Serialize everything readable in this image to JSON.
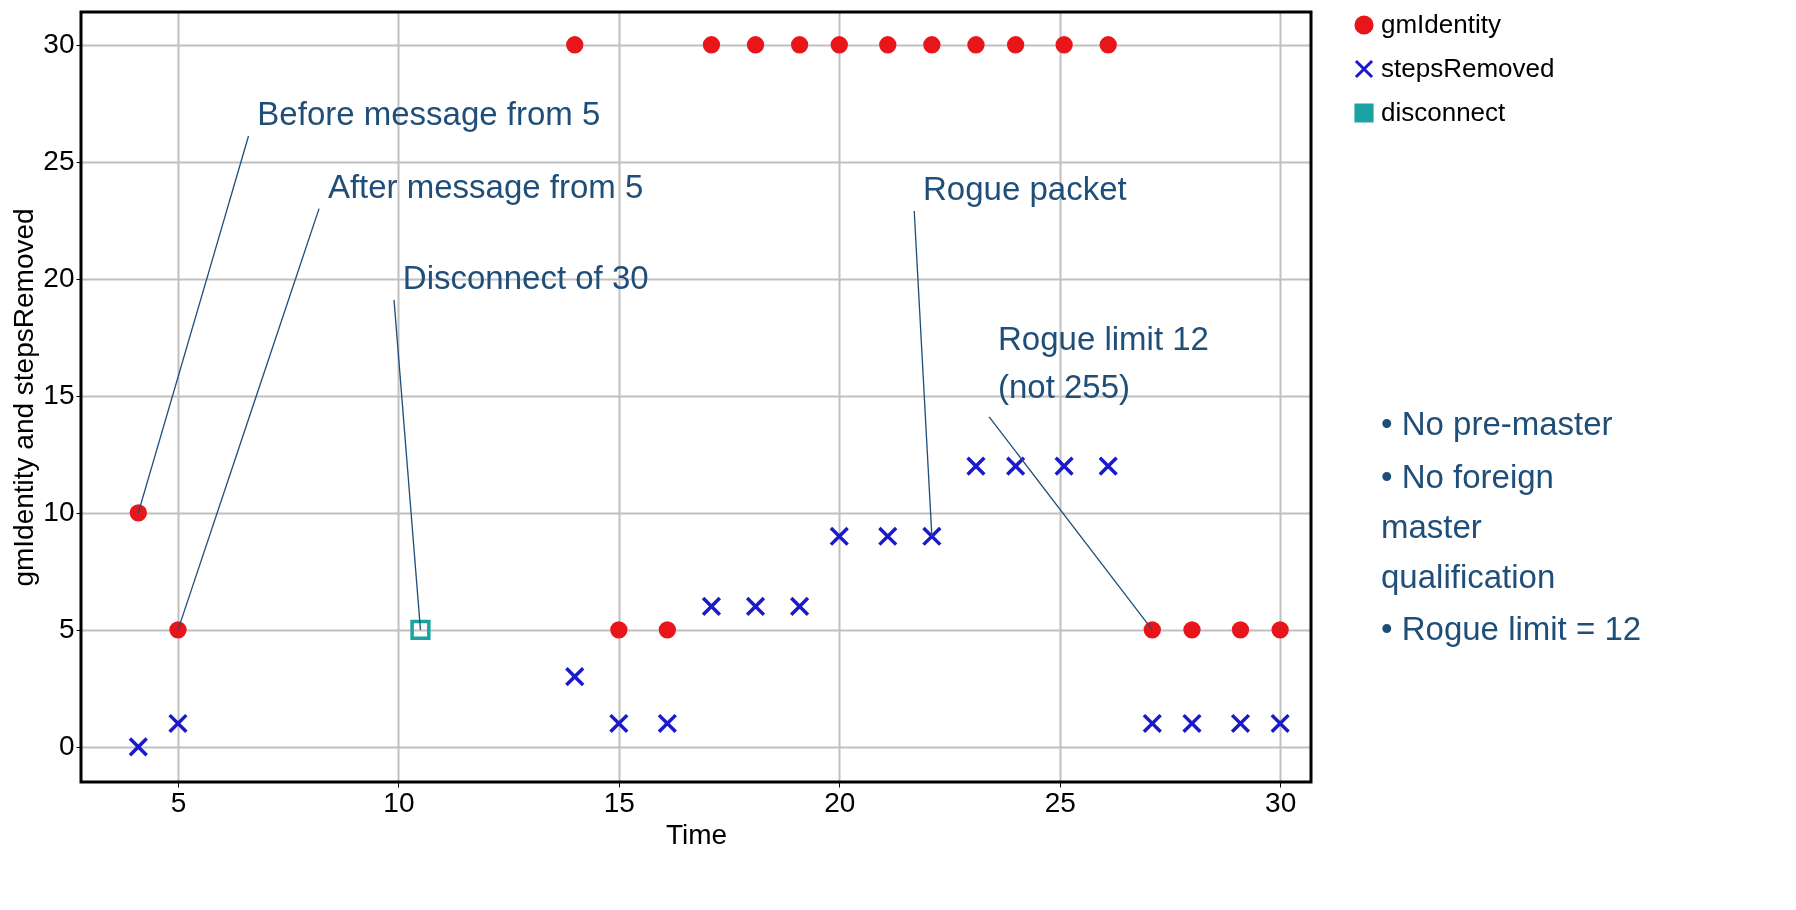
{
  "chart_data": {
    "type": "scatter",
    "xlabel": "Time",
    "ylabel": "gmIdentity and stepsRemoved",
    "xlim": [
      2.8,
      30.7
    ],
    "ylim": [
      -1.5,
      31.4
    ],
    "xticks": [
      5,
      10,
      15,
      20,
      25,
      30
    ],
    "yticks": [
      0,
      5,
      10,
      15,
      20,
      25,
      30
    ],
    "grid": true,
    "legend": "top right",
    "series": [
      {
        "name": "gmIdentity",
        "color": "#e8161b",
        "marker": "circle",
        "x": [
          4.1,
          5.0,
          14.0,
          15.0,
          16.1,
          17.1,
          18.1,
          19.1,
          20.0,
          21.1,
          22.1,
          23.1,
          24.0,
          25.1,
          26.1,
          27.1,
          28.0,
          29.1,
          30.0
        ],
        "values": [
          10,
          5,
          30,
          5,
          5,
          30,
          30,
          30,
          30,
          30,
          30,
          30,
          30,
          30,
          30,
          5,
          5,
          5,
          5
        ]
      },
      {
        "name": "stepsRemoved",
        "color": "#1a1acc",
        "marker": "cross",
        "x": [
          4.1,
          5.0,
          14.0,
          15.0,
          16.1,
          17.1,
          18.1,
          19.1,
          20.0,
          21.1,
          22.1,
          23.1,
          24.0,
          25.1,
          26.1,
          27.1,
          28.0,
          29.1,
          30.0
        ],
        "values": [
          0,
          1,
          3,
          1,
          1,
          6,
          6,
          6,
          9,
          9,
          9,
          12,
          12,
          12,
          12,
          1,
          1,
          1,
          1
        ]
      },
      {
        "name": "disconnect",
        "color": "#1ba3a3",
        "marker": "square",
        "x": [
          10.5
        ],
        "values": [
          5
        ]
      }
    ],
    "annotations": [
      {
        "text": "Before message from 5",
        "x": 4.1,
        "y": 10
      },
      {
        "text": "After message from 5",
        "x": 5.0,
        "y": 5
      },
      {
        "text": "Disconnect of 30",
        "x": 10.5,
        "y": 5
      },
      {
        "text": "Rogue packet",
        "x": 22.1,
        "y": 9
      },
      {
        "text": "Rogue limit 12\n(not 255)",
        "x": 27.1,
        "y": 5
      },
      "•   No pre-master",
      "•   No foreign\n     master\n     qualification",
      "•   Rogue limit = 12"
    ]
  }
}
